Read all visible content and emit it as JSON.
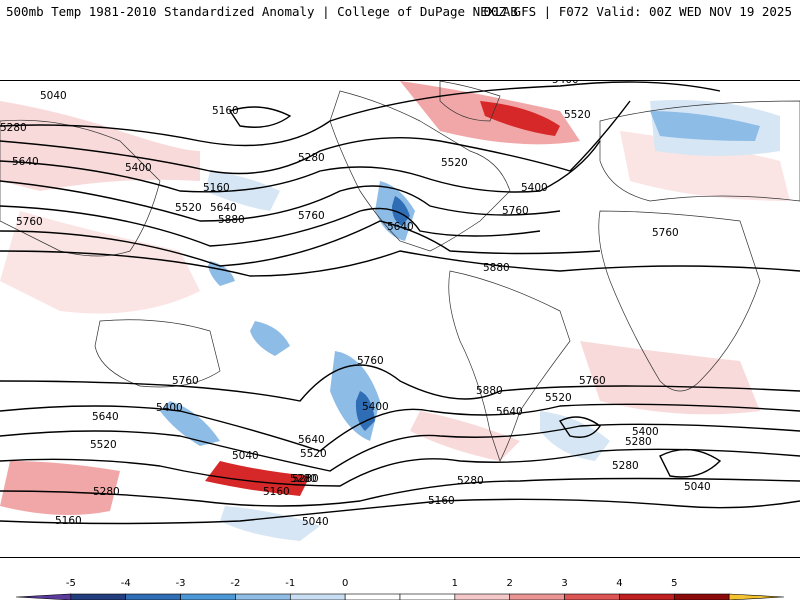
{
  "header": {
    "left_title": "500mb Temp 1981-2010 Standardized Anomaly | College of DuPage NEXLAB",
    "right_title": "00Z GFS | F072 Valid: 00Z WED NOV 19 2025"
  },
  "contours": {
    "labels": [
      "5040",
      "5160",
      "5280",
      "5400",
      "5520",
      "5640",
      "5760",
      "5880"
    ],
    "north": [
      "5040",
      "5160",
      "5280",
      "5400",
      "5520",
      "5640",
      "5760",
      "5880"
    ],
    "south": [
      "5160",
      "5280",
      "5400",
      "5520",
      "5640",
      "5760",
      "5880"
    ]
  },
  "colorbar": {
    "ticks": [
      -5,
      -4,
      -3,
      -2,
      -1,
      0,
      1,
      2,
      3,
      4,
      5
    ],
    "colors": [
      "#5a3a9a",
      "#223e7e",
      "#2f6db5",
      "#4c97d6",
      "#8fbde6",
      "#c9def2",
      "#ffffff",
      "#ffffff",
      "#f4c8c8",
      "#eb9494",
      "#dc5454",
      "#c02020",
      "#8c0a0a",
      "#f2c230"
    ]
  },
  "anomaly_colors": {
    "strong_warm": "#d62828",
    "warm": "#f1a7a7",
    "light_warm": "#f9dada",
    "light_cold": "#d6e6f5",
    "cold": "#8dbce6",
    "strong_cold": "#2f6db5"
  }
}
